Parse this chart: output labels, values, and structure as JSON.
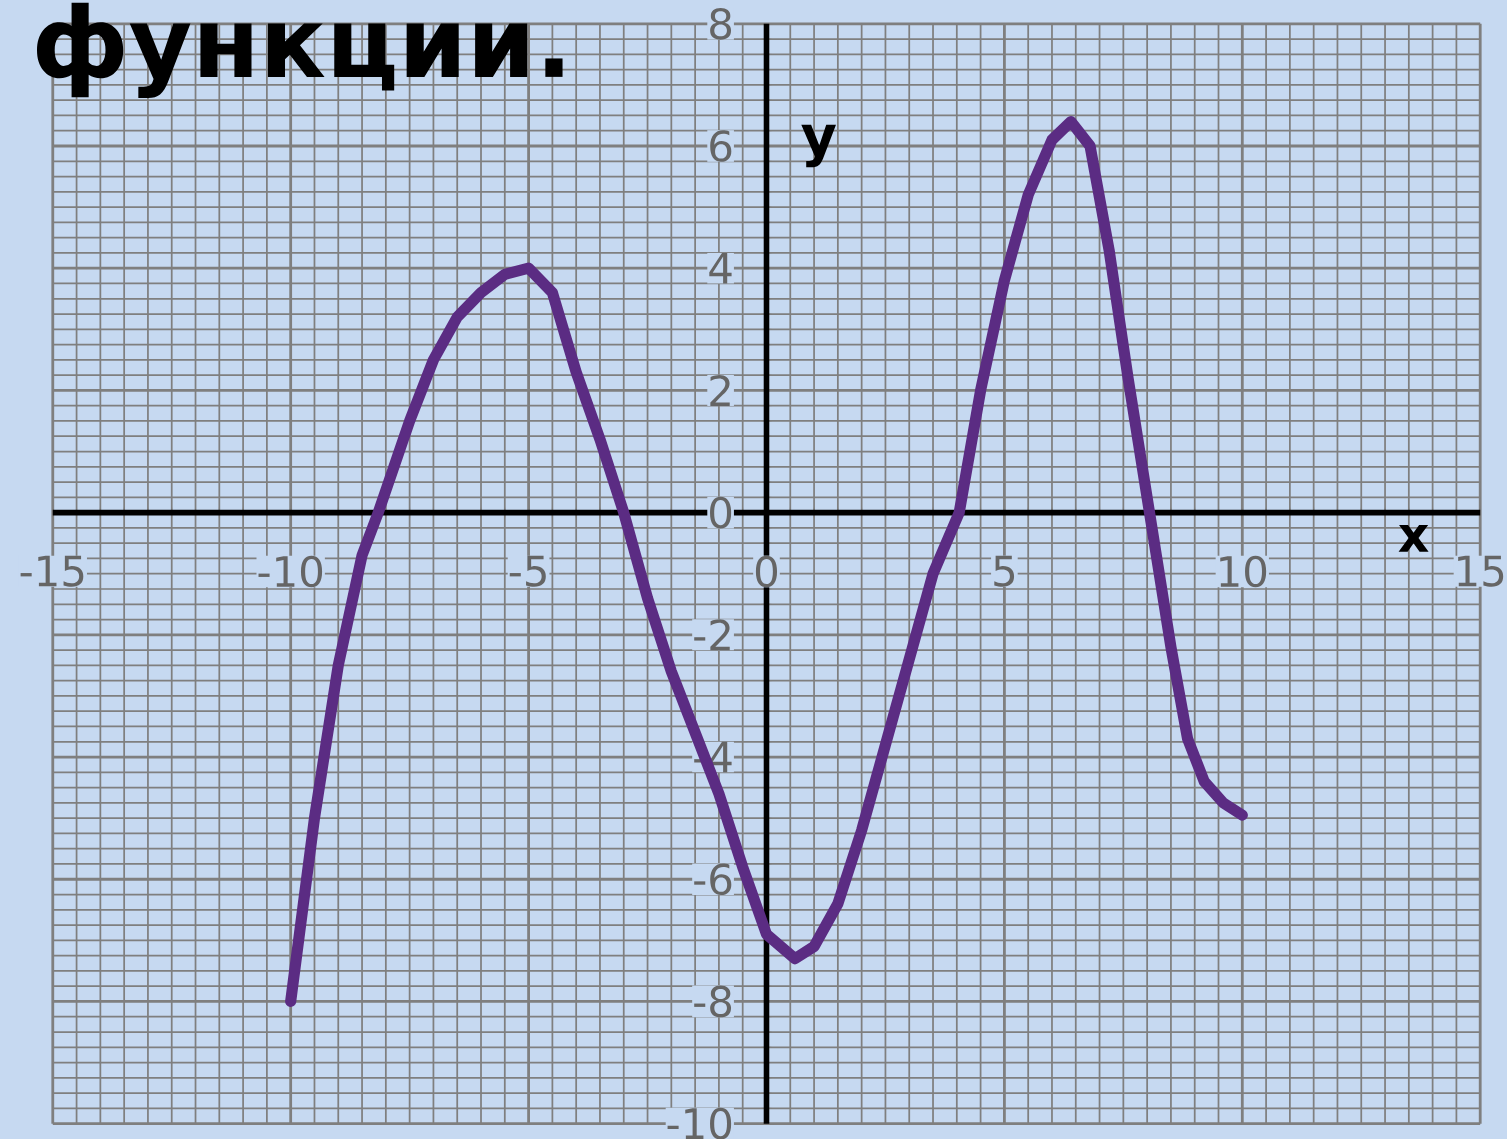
{
  "chart_data": {
    "type": "line",
    "title": "функции.",
    "xlabel": "x",
    "ylabel": "y",
    "x": [
      -10,
      -9.5,
      -9,
      -8.5,
      -8.16,
      -7.5,
      -7,
      -6.5,
      -6,
      -5.5,
      -5,
      -4.5,
      -4,
      -3.5,
      -3,
      -2.5,
      -2,
      -1.5,
      -1,
      -0.5,
      0,
      0.6,
      1,
      1.5,
      2,
      2.5,
      3,
      3.5,
      4.05,
      4.5,
      5,
      5.5,
      6,
      6.4,
      6.8,
      7.2,
      7.6,
      8.05,
      8.5,
      8.85,
      9.2,
      9.6,
      10
    ],
    "series": [
      {
        "color": "#5b2c83",
        "values": [
          -8,
          -5.0,
          -2.5,
          -0.7,
          0,
          1.5,
          2.5,
          3.2,
          3.6,
          3.9,
          4,
          3.6,
          2.3,
          1.2,
          0,
          -1.4,
          -2.6,
          -3.6,
          -4.6,
          -5.8,
          -6.9,
          -7.3,
          -7.1,
          -6.4,
          -5.2,
          -3.8,
          -2.4,
          -1.0,
          0,
          2,
          3.8,
          5.2,
          6.1,
          6.4,
          6.0,
          4.3,
          2.2,
          0,
          -2.2,
          -3.7,
          -4.4,
          -4.75,
          -4.95
        ]
      }
    ],
    "xlim": [
      -15,
      15
    ],
    "ylim": [
      -10,
      8
    ],
    "xticks": [
      -15,
      -10,
      -5,
      0,
      5,
      10,
      15
    ],
    "yticks": [
      -10,
      -8,
      -6,
      -4,
      -2,
      0,
      2,
      4,
      6,
      8
    ],
    "grid": true,
    "marker": "none",
    "line_style": "solid"
  }
}
